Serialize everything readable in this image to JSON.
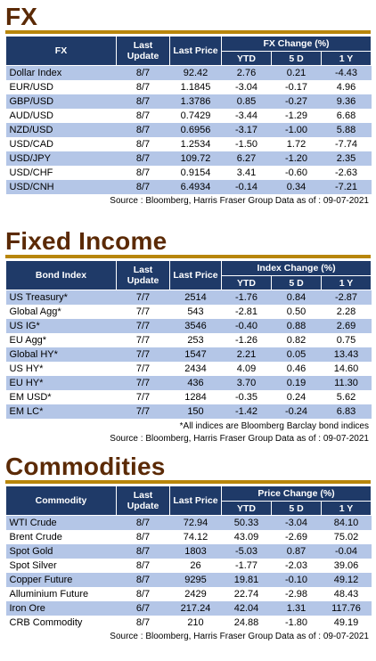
{
  "fx": {
    "title": "FX",
    "headers": {
      "name": "FX",
      "last_update": "Last Update",
      "last_price": "Last Price",
      "change": "FX Change (%)",
      "ytd": "YTD",
      "d5": "5 D",
      "y1": "1 Y"
    },
    "rows": [
      [
        "Dollar Index",
        "8/7",
        "92.42",
        "2.76",
        "0.21",
        "-4.43"
      ],
      [
        "EUR/USD",
        "8/7",
        "1.1845",
        "-3.04",
        "-0.17",
        "4.96"
      ],
      [
        "GBP/USD",
        "8/7",
        "1.3786",
        "0.85",
        "-0.27",
        "9.36"
      ],
      [
        "AUD/USD",
        "8/7",
        "0.7429",
        "-3.44",
        "-1.29",
        "6.68"
      ],
      [
        "NZD/USD",
        "8/7",
        "0.6956",
        "-3.17",
        "-1.00",
        "5.88"
      ],
      [
        "USD/CAD",
        "8/7",
        "1.2534",
        "-1.50",
        "1.72",
        "-7.74"
      ],
      [
        "USD/JPY",
        "8/7",
        "109.72",
        "6.27",
        "-1.20",
        "2.35"
      ],
      [
        "USD/CHF",
        "8/7",
        "0.9154",
        "3.41",
        "-0.60",
        "-2.63"
      ],
      [
        "USD/CNH",
        "8/7",
        "6.4934",
        "-0.14",
        "0.34",
        "-7.21"
      ]
    ],
    "source": "Source : Bloomberg, Harris Fraser Group Data as of : 09-07-2021"
  },
  "fixed_income": {
    "title": "Fixed Income",
    "headers": {
      "name": "Bond Index",
      "last_update": "Last Update",
      "last_price": "Last Price",
      "change": "Index Change (%)",
      "ytd": "YTD",
      "d5": "5 D",
      "y1": "1 Y"
    },
    "rows": [
      [
        "US Treasury*",
        "7/7",
        "2514",
        "-1.76",
        "0.84",
        "-2.87"
      ],
      [
        "Global Agg*",
        "7/7",
        "543",
        "-2.81",
        "0.50",
        "2.28"
      ],
      [
        "US IG*",
        "7/7",
        "3546",
        "-0.40",
        "0.88",
        "2.69"
      ],
      [
        "EU Agg*",
        "7/7",
        "253",
        "-1.26",
        "0.82",
        "0.75"
      ],
      [
        "Global HY*",
        "7/7",
        "1547",
        "2.21",
        "0.05",
        "13.43"
      ],
      [
        "US HY*",
        "7/7",
        "2434",
        "4.09",
        "0.46",
        "14.60"
      ],
      [
        "EU HY*",
        "7/7",
        "436",
        "3.70",
        "0.19",
        "11.30"
      ],
      [
        "EM USD*",
        "7/7",
        "1284",
        "-0.35",
        "0.24",
        "5.62"
      ],
      [
        "EM LC*",
        "7/7",
        "150",
        "-1.42",
        "-0.24",
        "6.83"
      ]
    ],
    "note": "*All indices are Bloomberg Barclay bond indices",
    "source": "Source : Bloomberg, Harris Fraser Group Data as of : 09-07-2021"
  },
  "commodities": {
    "title": "Commodities",
    "headers": {
      "name": "Commodity",
      "last_update": "Last Update",
      "last_price": "Last Price",
      "change": "Price Change (%)",
      "ytd": "YTD",
      "d5": "5 D",
      "y1": "1 Y"
    },
    "rows": [
      [
        "WTI Crude",
        "8/7",
        "72.94",
        "50.33",
        "-3.04",
        "84.10"
      ],
      [
        "Brent Crude",
        "8/7",
        "74.12",
        "43.09",
        "-2.69",
        "75.02"
      ],
      [
        "Spot Gold",
        "8/7",
        "1803",
        "-5.03",
        "0.87",
        "-0.04"
      ],
      [
        "Spot Silver",
        "8/7",
        "26",
        "-1.77",
        "-2.03",
        "39.06"
      ],
      [
        "Copper Future",
        "8/7",
        "9295",
        "19.81",
        "-0.10",
        "49.12"
      ],
      [
        "Alluminium Future",
        "8/7",
        "2429",
        "22.74",
        "-2.98",
        "48.43"
      ],
      [
        "Iron Ore",
        "6/7",
        "217.24",
        "42.04",
        "1.31",
        "117.76"
      ],
      [
        "CRB Commodity",
        "8/7",
        "210",
        "24.88",
        "-1.80",
        "49.19"
      ]
    ],
    "source": "Source : Bloomberg, Harris Fraser Group Data as of : 09-07-2021"
  }
}
